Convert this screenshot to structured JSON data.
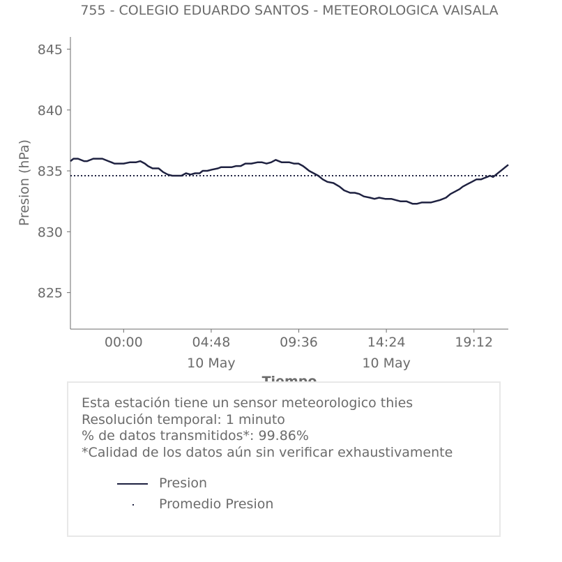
{
  "chart_data": {
    "type": "line",
    "title": "755 - COLEGIO EDUARDO SANTOS - METEOROLOGICA VAISALA",
    "xlabel": "Tiempo",
    "ylabel": "Presion (hPa)",
    "ylim": [
      822,
      846
    ],
    "xlim": [
      -175,
      1265
    ],
    "x_unit": "minutes from 00:00, 10 May",
    "yticks": [
      825,
      830,
      835,
      840,
      845
    ],
    "ytick_labels": [
      "825",
      "830",
      "835",
      "840",
      "845"
    ],
    "xticks": [
      0,
      288,
      576,
      864,
      1152
    ],
    "xtick_labels": [
      "00:00",
      "04:48",
      "09:36",
      "14:24",
      "19:12"
    ],
    "xtick_sublabels": [
      "",
      "10 May",
      "",
      "10 May",
      ""
    ],
    "grid": false,
    "legend_position": "bottom",
    "series": [
      {
        "name": "Presion",
        "color": "#1e2140",
        "style": "solid",
        "x": [
          -175,
          -165,
          -150,
          -130,
          -120,
          -100,
          -85,
          -70,
          -50,
          -40,
          -30,
          -15,
          0,
          20,
          40,
          55,
          70,
          80,
          95,
          105,
          115,
          130,
          145,
          160,
          175,
          190,
          205,
          220,
          235,
          250,
          260,
          275,
          290,
          310,
          320,
          340,
          355,
          370,
          385,
          400,
          420,
          440,
          455,
          470,
          485,
          500,
          520,
          535,
          545,
          560,
          575,
          590,
          600,
          610,
          625,
          640,
          655,
          670,
          690,
          710,
          725,
          745,
          760,
          775,
          790,
          810,
          825,
          840,
          860,
          880,
          895,
          910,
          930,
          950,
          965,
          980,
          995,
          1010,
          1025,
          1040,
          1060,
          1075,
          1090,
          1105,
          1115,
          1130,
          1145,
          1160,
          1175,
          1185,
          1195,
          1205,
          1215,
          1225,
          1235,
          1245,
          1255,
          1265
        ],
        "y": [
          835.8,
          836.0,
          836.0,
          835.8,
          835.8,
          836.0,
          836.0,
          836.0,
          835.8,
          835.7,
          835.6,
          835.6,
          835.6,
          835.7,
          835.7,
          835.8,
          835.6,
          835.4,
          835.2,
          835.2,
          835.2,
          834.9,
          834.7,
          834.6,
          834.6,
          834.6,
          834.8,
          834.7,
          834.8,
          834.8,
          835.0,
          835.0,
          835.1,
          835.2,
          835.3,
          835.3,
          835.3,
          835.4,
          835.4,
          835.6,
          835.6,
          835.7,
          835.7,
          835.6,
          835.7,
          835.9,
          835.7,
          835.7,
          835.7,
          835.6,
          835.6,
          835.4,
          835.2,
          835.0,
          834.8,
          834.6,
          834.3,
          834.1,
          834.0,
          833.7,
          833.4,
          833.2,
          833.2,
          833.1,
          832.9,
          832.8,
          832.7,
          832.8,
          832.7,
          832.7,
          832.6,
          832.5,
          832.5,
          832.3,
          832.3,
          832.4,
          832.4,
          832.4,
          832.5,
          832.6,
          832.8,
          833.1,
          833.3,
          833.5,
          833.7,
          833.9,
          834.1,
          834.3,
          834.3,
          834.4,
          834.5,
          834.6,
          834.5,
          834.7,
          834.9,
          835.1,
          835.3,
          835.5
        ]
      },
      {
        "name": "Promedio Presion",
        "color": "#1e2140",
        "style": "dotted",
        "x": [
          -175,
          1265
        ],
        "y": [
          834.6,
          834.6
        ]
      }
    ]
  },
  "info": {
    "line1": "Esta estación tiene un sensor meteorologico thies",
    "line2": "Resolución temporal: 1 minuto",
    "line3": "% de datos transmitidos*: 99.86%",
    "line4": "*Calidad de los datos aún sin verificar exhaustivamente"
  },
  "legend": {
    "item1": "Presion",
    "item2": "Promedio Presion"
  }
}
